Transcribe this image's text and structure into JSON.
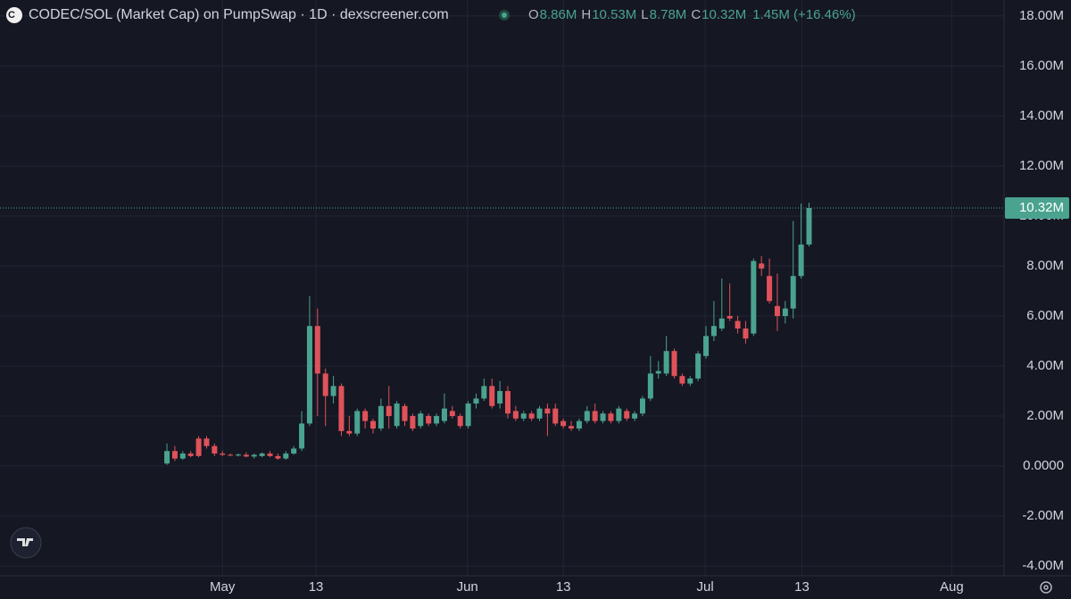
{
  "header": {
    "title": "CODEC/SOL (Market Cap) on PumpSwap · 1D · dexscreener.com",
    "ohlc": [
      {
        "label": "O",
        "value": "8.86M"
      },
      {
        "label": "H",
        "value": "10.53M"
      },
      {
        "label": "L",
        "value": "8.78M"
      },
      {
        "label": "C",
        "value": "10.32M"
      }
    ],
    "change": "1.45M (+16.46%)"
  },
  "chart_data": {
    "type": "candlestick",
    "up_color": "#4aa38f",
    "down_color": "#e0525a",
    "grid": true,
    "ylim": [
      -4.39,
      18.64
    ],
    "yticks": [
      {
        "value": 18,
        "label": "18.00M"
      },
      {
        "value": 16,
        "label": "16.00M"
      },
      {
        "value": 14,
        "label": "14.00M"
      },
      {
        "value": 12,
        "label": "12.00M"
      },
      {
        "value": 10,
        "label": "10.00M"
      },
      {
        "value": 8,
        "label": "8.00M"
      },
      {
        "value": 6,
        "label": "6.00M"
      },
      {
        "value": 4,
        "label": "4.00M"
      },
      {
        "value": 2,
        "label": "2.00M"
      },
      {
        "value": 0,
        "label": "0.0000"
      },
      {
        "value": -2,
        "label": "-2.00M"
      },
      {
        "value": -4,
        "label": "-4.00M"
      }
    ],
    "xlim": [
      -21.06,
      105.6
    ],
    "xticks": [
      {
        "value": 7,
        "label": "May"
      },
      {
        "value": 18.8,
        "label": "13"
      },
      {
        "value": 37.9,
        "label": "Jun"
      },
      {
        "value": 50,
        "label": "13"
      },
      {
        "value": 67.9,
        "label": "Jul"
      },
      {
        "value": 80.1,
        "label": "13"
      },
      {
        "value": 99,
        "label": "Aug"
      }
    ],
    "last_price": {
      "value": 10.32,
      "label": "10.32M"
    },
    "candles": [
      [
        0.1,
        0.9,
        0.05,
        0.6
      ],
      [
        0.6,
        0.8,
        0.2,
        0.3
      ],
      [
        0.3,
        0.6,
        0.25,
        0.5
      ],
      [
        0.5,
        0.6,
        0.35,
        0.4
      ],
      [
        1.1,
        1.2,
        0.35,
        0.4
      ],
      [
        1.1,
        1.2,
        0.7,
        0.8
      ],
      [
        0.8,
        0.9,
        0.4,
        0.5
      ],
      [
        0.5,
        0.6,
        0.4,
        0.45
      ],
      [
        0.45,
        0.5,
        0.4,
        0.42
      ],
      [
        0.42,
        0.5,
        0.38,
        0.46
      ],
      [
        0.45,
        0.55,
        0.35,
        0.38
      ],
      [
        0.38,
        0.5,
        0.3,
        0.45
      ],
      [
        0.4,
        0.55,
        0.35,
        0.5
      ],
      [
        0.5,
        0.6,
        0.35,
        0.4
      ],
      [
        0.4,
        0.5,
        0.25,
        0.3
      ],
      [
        0.3,
        0.6,
        0.25,
        0.5
      ],
      [
        0.5,
        0.8,
        0.45,
        0.7
      ],
      [
        0.7,
        2.2,
        0.6,
        1.7
      ],
      [
        1.7,
        6.8,
        1.6,
        5.6
      ],
      [
        5.6,
        6.3,
        2.0,
        3.7
      ],
      [
        3.7,
        3.9,
        1.6,
        2.8
      ],
      [
        2.8,
        3.6,
        2.5,
        3.2
      ],
      [
        3.2,
        3.3,
        1.2,
        1.4
      ],
      [
        1.4,
        2.0,
        1.2,
        1.3
      ],
      [
        1.3,
        2.3,
        1.2,
        2.2
      ],
      [
        2.2,
        2.3,
        1.5,
        1.8
      ],
      [
        1.8,
        1.9,
        1.3,
        1.5
      ],
      [
        1.5,
        2.7,
        1.4,
        2.4
      ],
      [
        2.4,
        3.2,
        1.5,
        2.0
      ],
      [
        1.6,
        2.6,
        1.5,
        2.5
      ],
      [
        2.4,
        2.5,
        1.6,
        1.8
      ],
      [
        2.0,
        2.1,
        1.4,
        1.5
      ],
      [
        1.6,
        2.2,
        1.5,
        2.1
      ],
      [
        2.0,
        2.1,
        1.6,
        1.7
      ],
      [
        1.7,
        2.1,
        1.6,
        2.0
      ],
      [
        1.8,
        2.9,
        1.7,
        2.3
      ],
      [
        2.2,
        2.4,
        1.9,
        2.0
      ],
      [
        2.0,
        2.1,
        1.5,
        1.6
      ],
      [
        1.6,
        2.6,
        1.5,
        2.5
      ],
      [
        2.5,
        2.9,
        2.3,
        2.7
      ],
      [
        2.7,
        3.5,
        2.6,
        3.2
      ],
      [
        3.2,
        3.5,
        2.3,
        2.4
      ],
      [
        2.5,
        3.4,
        2.3,
        3.0
      ],
      [
        3.0,
        3.2,
        1.9,
        2.1
      ],
      [
        2.2,
        2.4,
        1.8,
        1.9
      ],
      [
        1.9,
        2.2,
        1.8,
        2.1
      ],
      [
        2.1,
        2.2,
        1.8,
        1.9
      ],
      [
        1.9,
        2.4,
        1.8,
        2.3
      ],
      [
        2.3,
        2.5,
        1.2,
        2.1
      ],
      [
        2.3,
        2.5,
        1.6,
        1.7
      ],
      [
        1.8,
        1.9,
        1.5,
        1.6
      ],
      [
        1.6,
        1.8,
        1.4,
        1.5
      ],
      [
        1.5,
        1.9,
        1.4,
        1.8
      ],
      [
        1.8,
        2.4,
        1.7,
        2.2
      ],
      [
        2.2,
        2.5,
        1.7,
        1.8
      ],
      [
        1.8,
        2.2,
        1.7,
        2.1
      ],
      [
        2.1,
        2.2,
        1.7,
        1.8
      ],
      [
        1.8,
        2.4,
        1.7,
        2.3
      ],
      [
        2.2,
        2.3,
        1.8,
        1.9
      ],
      [
        1.9,
        2.2,
        1.8,
        2.1
      ],
      [
        2.1,
        2.8,
        2.0,
        2.7
      ],
      [
        2.7,
        4.4,
        2.6,
        3.7
      ],
      [
        3.7,
        4.2,
        3.5,
        3.8
      ],
      [
        3.7,
        5.2,
        3.6,
        4.6
      ],
      [
        4.6,
        4.7,
        3.5,
        3.6
      ],
      [
        3.6,
        3.7,
        3.2,
        3.3
      ],
      [
        3.3,
        3.6,
        3.2,
        3.5
      ],
      [
        3.5,
        4.6,
        3.4,
        4.5
      ],
      [
        4.4,
        5.6,
        4.3,
        5.2
      ],
      [
        5.2,
        6.6,
        5.0,
        5.6
      ],
      [
        5.5,
        7.5,
        5.4,
        5.9
      ],
      [
        6.0,
        7.3,
        5.8,
        5.9
      ],
      [
        5.8,
        6.0,
        5.3,
        5.5
      ],
      [
        5.5,
        5.8,
        4.9,
        5.1
      ],
      [
        5.3,
        8.3,
        5.2,
        8.2
      ],
      [
        8.1,
        8.4,
        7.6,
        7.9
      ],
      [
        7.6,
        8.3,
        6.5,
        6.6
      ],
      [
        6.4,
        7.7,
        5.4,
        6.0
      ],
      [
        6.0,
        6.6,
        5.7,
        6.3
      ],
      [
        6.3,
        9.8,
        5.9,
        7.6
      ],
      [
        7.6,
        10.5,
        7.5,
        8.86
      ],
      [
        8.86,
        10.53,
        8.78,
        10.32
      ]
    ]
  }
}
